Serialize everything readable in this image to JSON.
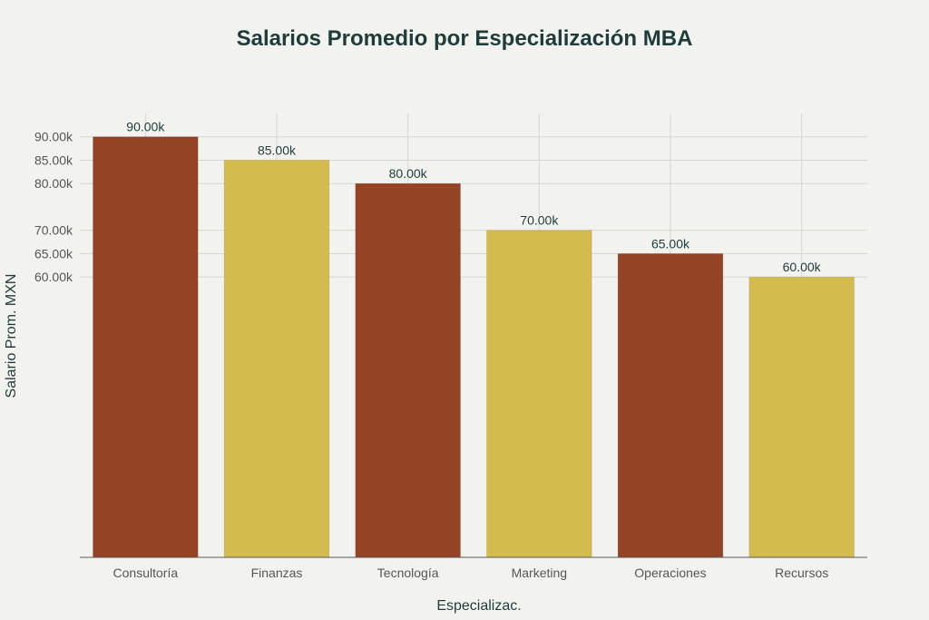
{
  "chart_data": {
    "type": "bar",
    "title": "Salarios Promedio por Especialización MBA",
    "xlabel": "Especializac.",
    "ylabel": "Salario Prom. MXN",
    "categories": [
      "Consultoría",
      "Finanzas",
      "Tecnología",
      "Marketing",
      "Operaciones",
      "Recursos"
    ],
    "values": [
      90000,
      85000,
      80000,
      70000,
      65000,
      60000
    ],
    "data_labels": [
      "90.00k",
      "85.00k",
      "80.00k",
      "70.00k",
      "65.00k",
      "60.00k"
    ],
    "y_ticks": [
      60000,
      65000,
      70000,
      80000,
      85000,
      90000
    ],
    "y_tick_labels": [
      "60.00k",
      "65.00k",
      "70.00k",
      "80.00k",
      "85.00k",
      "90.00k"
    ],
    "ylim": [
      0,
      95000
    ],
    "colors": [
      "#944324",
      "#d3bb4d",
      "#944324",
      "#d3bb4d",
      "#944324",
      "#d3bb4d"
    ],
    "grid": true,
    "legend": false
  }
}
